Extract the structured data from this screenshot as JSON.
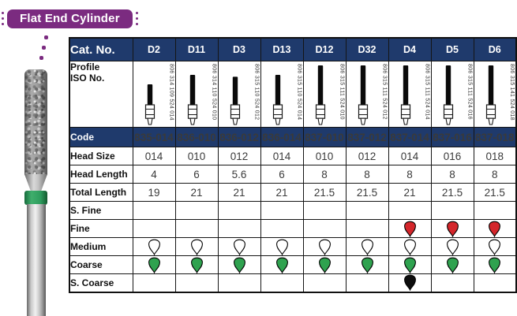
{
  "badge": {
    "label": "Flat End Cylinder"
  },
  "colors": {
    "badge_purple": "#7b2b80",
    "header_navy": "#1f3a6c",
    "band_green": "#2d9c5d",
    "grit_red": "#d4262b",
    "grit_green": "#2fa24f",
    "grit_black": "#0d0d0d",
    "grit_white": "#ffffff"
  },
  "table": {
    "cat_no_label": "Cat. No.",
    "profile_label_line1": "Profile",
    "profile_label_line2": "ISO No.",
    "columns": [
      "D2",
      "D11",
      "D3",
      "D13",
      "D12",
      "D32",
      "D4",
      "D5",
      "D6"
    ],
    "iso_numbers": [
      "806 314 109 524 014",
      "806 314 110 524 010",
      "806 315 110 524 012",
      "806 315 110 524 014",
      "806 315 111 524 010",
      "806 315 111 524 012",
      "806 315 111 524 014",
      "806 315 111 524 016",
      "806 315 141 524 018"
    ],
    "spec_rows": [
      {
        "label": "Code",
        "style": "navy",
        "values": [
          "835-014",
          "836-010",
          "836-012",
          "836-014",
          "837-010",
          "837-012",
          "837-014",
          "837-016",
          "837-018"
        ]
      },
      {
        "label": "Head Size",
        "values": [
          "014",
          "010",
          "012",
          "014",
          "010",
          "012",
          "014",
          "016",
          "018"
        ]
      },
      {
        "label": "Head Length",
        "values": [
          "4",
          "6",
          "5.6",
          "6",
          "8",
          "8",
          "8",
          "8",
          "8"
        ]
      },
      {
        "label": "Total Length",
        "values": [
          "19",
          "21",
          "21",
          "21",
          "21.5",
          "21.5",
          "21",
          "21.5",
          "21.5"
        ]
      }
    ],
    "grit_rows": [
      {
        "label": "S. Fine",
        "grit": "white",
        "marks": [
          0,
          0,
          0,
          0,
          0,
          0,
          0,
          0,
          0
        ]
      },
      {
        "label": "Fine",
        "grit": "red",
        "marks": [
          0,
          0,
          0,
          0,
          0,
          0,
          1,
          1,
          1
        ]
      },
      {
        "label": "Medium",
        "grit": "white",
        "marks": [
          1,
          1,
          1,
          1,
          1,
          1,
          1,
          1,
          1
        ]
      },
      {
        "label": "Coarse",
        "grit": "green",
        "marks": [
          1,
          1,
          1,
          1,
          1,
          1,
          1,
          1,
          1
        ]
      },
      {
        "label": "S. Coarse",
        "grit": "black",
        "marks": [
          0,
          0,
          0,
          0,
          0,
          0,
          1,
          0,
          0
        ]
      }
    ]
  }
}
